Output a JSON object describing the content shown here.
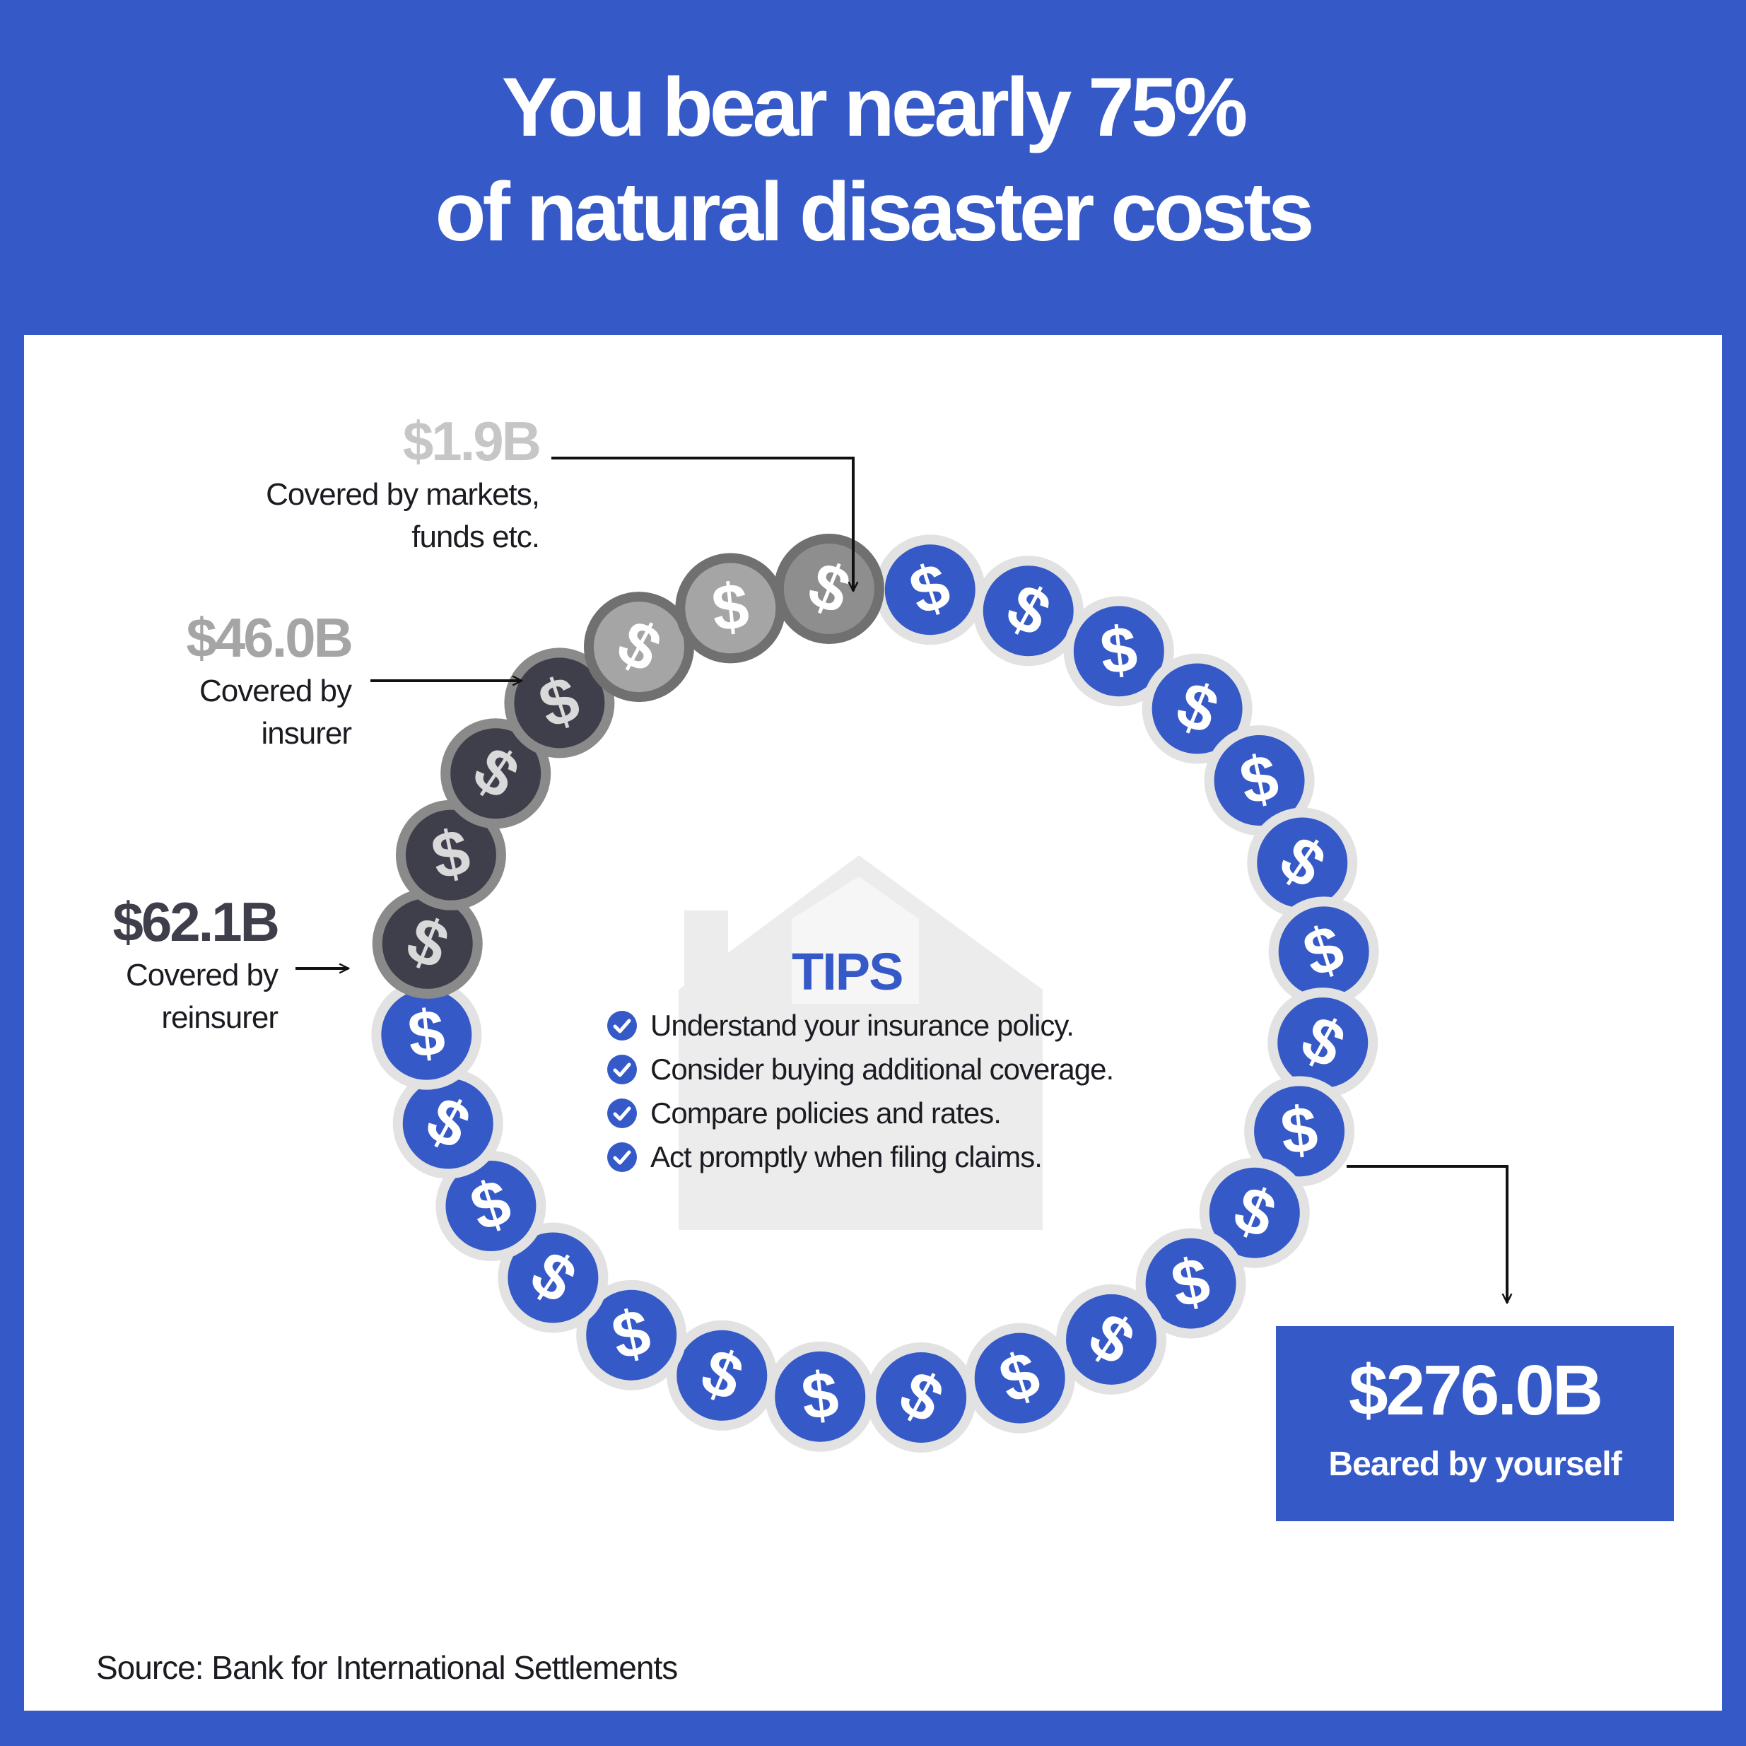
{
  "title": {
    "line1": "You bear nearly  75%",
    "line2": "of natural disaster costs"
  },
  "chart_data": {
    "type": "pie",
    "unit": "USD billions",
    "segments": [
      {
        "label": "Covered by markets, funds etc.",
        "amount_text": "$1.9B",
        "value": 1.9,
        "coins": 1,
        "color": "#8e8e8e",
        "coin_icon": "dollar-coin-icon"
      },
      {
        "label": "Covered by insurer",
        "amount_text": "$46.0B",
        "value": 46.0,
        "coins": 2,
        "color": "#a5a5a5",
        "coin_icon": "dollar-coin-icon"
      },
      {
        "label": "Covered by reinsurer",
        "amount_text": "$62.1B",
        "value": 62.1,
        "coins": 4,
        "color": "#3f3f4c",
        "coin_icon": "dollar-coin-icon"
      },
      {
        "label": "Beared by yourself",
        "amount_text": "$276.0B",
        "value": 276.0,
        "coins": 21,
        "color": "#3559C7",
        "coin_icon": "dollar-coin-icon"
      }
    ]
  },
  "labels": {
    "markets": {
      "amount": "$1.9B",
      "line1": "Covered by markets,",
      "line2": "funds etc."
    },
    "insurer": {
      "amount": "$46.0B",
      "line1": "Covered by",
      "line2": "insurer"
    },
    "reinsurer": {
      "amount": "$62.1B",
      "line1": "Covered by",
      "line2": "reinsurer"
    },
    "yourself": {
      "amount": "$276.0B",
      "line1": "Beared by yourself"
    }
  },
  "tips": {
    "title": "TIPS",
    "items": [
      "Understand your insurance policy.",
      "Consider buying additional coverage.",
      "Compare policies and rates.",
      "Act promptly when filing claims."
    ]
  },
  "icons": {
    "background": "house-icon",
    "bullet": "check-circle-icon"
  },
  "colors": {
    "brand": "#3559C7",
    "reinsurer": "#3f3f4c",
    "insurer": "#a5a5a5",
    "markets": "#8e8e8e"
  },
  "source": "Source: Bank for International Settlements"
}
